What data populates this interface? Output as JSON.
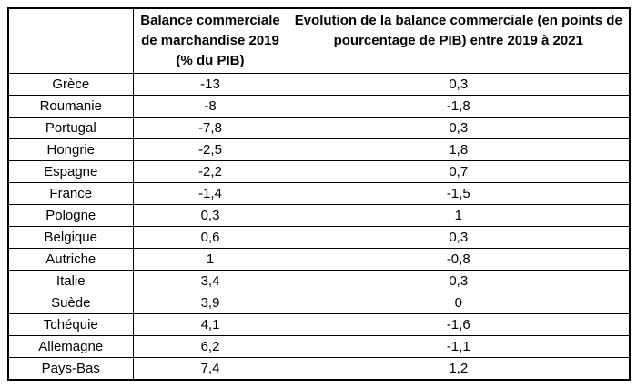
{
  "chart_data": {
    "type": "table",
    "header": {
      "country_label": "",
      "balance_label": "Balance commerciale de marchandise 2019 (% du PIB)",
      "evolution_label": "Evolution de la balance commerciale (en points de pourcentage de PIB) entre 2019 à 2021"
    },
    "rows": [
      {
        "country": "Grèce",
        "balance_2019": "-13",
        "evolution": "0,3"
      },
      {
        "country": "Roumanie",
        "balance_2019": "-8",
        "evolution": "-1,8"
      },
      {
        "country": "Portugal",
        "balance_2019": "-7,8",
        "evolution": "0,3"
      },
      {
        "country": "Hongrie",
        "balance_2019": "-2,5",
        "evolution": "1,8"
      },
      {
        "country": "Espagne",
        "balance_2019": "-2,2",
        "evolution": "0,7"
      },
      {
        "country": "France",
        "balance_2019": "-1,4",
        "evolution": "-1,5"
      },
      {
        "country": "Pologne",
        "balance_2019": "0,3",
        "evolution": "1"
      },
      {
        "country": "Belgique",
        "balance_2019": "0,6",
        "evolution": "0,3"
      },
      {
        "country": "Autriche",
        "balance_2019": "1",
        "evolution": "-0,8"
      },
      {
        "country": "Italie",
        "balance_2019": "3,4",
        "evolution": "0,3"
      },
      {
        "country": "Suède",
        "balance_2019": "3,9",
        "evolution": "0"
      },
      {
        "country": "Tchéquie",
        "balance_2019": "4,1",
        "evolution": "-1,6"
      },
      {
        "country": "Allemagne",
        "balance_2019": "6,2",
        "evolution": "-1,1"
      },
      {
        "country": "Pays-Bas",
        "balance_2019": "7,4",
        "evolution": "1,2"
      }
    ],
    "numeric": {
      "balance_2019_values": [
        -13,
        -8,
        -7.8,
        -2.5,
        -2.2,
        -1.4,
        0.3,
        0.6,
        1,
        3.4,
        3.9,
        4.1,
        6.2,
        7.4
      ],
      "evolution_values": [
        0.3,
        -1.8,
        0.3,
        1.8,
        0.7,
        -1.5,
        1,
        0.3,
        -0.8,
        0.3,
        0,
        -1.6,
        -1.1,
        1.2
      ]
    },
    "border_color": "#000000",
    "background_color": "#ffffff"
  }
}
